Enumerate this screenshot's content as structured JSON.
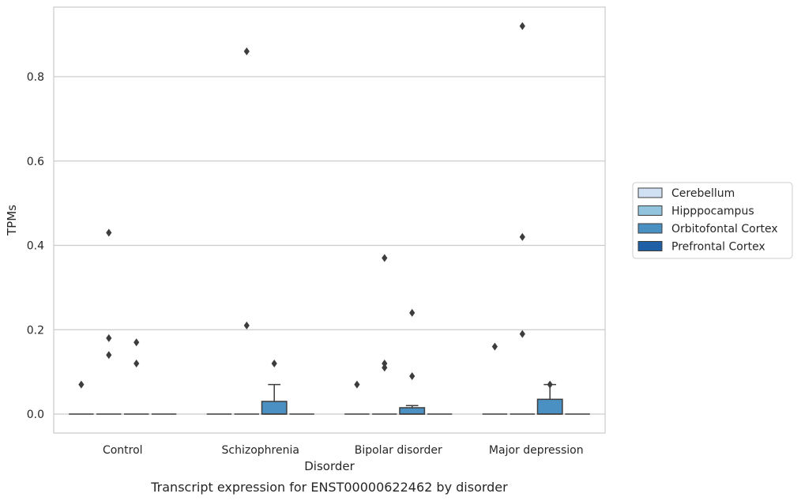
{
  "chart_data": {
    "type": "box",
    "title": "",
    "caption": "Transcript expression for ENST00000622462 by disorder",
    "xlabel": "Disorder",
    "ylabel": "TPMs",
    "ylim": [
      -0.045,
      0.965
    ],
    "yticks": [
      0.0,
      0.2,
      0.4,
      0.6,
      0.8
    ],
    "ytick_labels": [
      "0.0",
      "0.2",
      "0.4",
      "0.6",
      "0.8"
    ],
    "grid": "horizontal",
    "legend_position": "right",
    "categories": [
      "Control",
      "Schizophrenia",
      "Bipolar disorder",
      "Major depression"
    ],
    "series": [
      {
        "name": "Cerebellum",
        "color": "#cfe1f2",
        "boxes": [
          {
            "q1": 0,
            "median": 0,
            "q3": 0,
            "whisker_low": 0,
            "whisker_high": 0,
            "outliers": [
              0.07
            ]
          },
          {
            "q1": 0,
            "median": 0,
            "q3": 0,
            "whisker_low": 0,
            "whisker_high": 0,
            "outliers": []
          },
          {
            "q1": 0,
            "median": 0,
            "q3": 0,
            "whisker_low": 0,
            "whisker_high": 0,
            "outliers": [
              0.07
            ]
          },
          {
            "q1": 0,
            "median": 0,
            "q3": 0,
            "whisker_low": 0,
            "whisker_high": 0,
            "outliers": [
              0.16
            ]
          }
        ]
      },
      {
        "name": "Hipppocampus",
        "color": "#93c4de",
        "boxes": [
          {
            "q1": 0,
            "median": 0,
            "q3": 0,
            "whisker_low": 0,
            "whisker_high": 0,
            "outliers": [
              0.43,
              0.18,
              0.14
            ]
          },
          {
            "q1": 0,
            "median": 0,
            "q3": 0,
            "whisker_low": 0,
            "whisker_high": 0,
            "outliers": [
              0.86,
              0.21
            ]
          },
          {
            "q1": 0,
            "median": 0,
            "q3": 0,
            "whisker_low": 0,
            "whisker_high": 0,
            "outliers": [
              0.37,
              0.12,
              0.11
            ]
          },
          {
            "q1": 0,
            "median": 0,
            "q3": 0,
            "whisker_low": 0,
            "whisker_high": 0,
            "outliers": [
              0.92,
              0.42,
              0.19
            ]
          }
        ]
      },
      {
        "name": "Orbitofontal Cortex",
        "color": "#4a90c2",
        "boxes": [
          {
            "q1": 0,
            "median": 0,
            "q3": 0,
            "whisker_low": 0,
            "whisker_high": 0,
            "outliers": [
              0.17,
              0.12
            ]
          },
          {
            "q1": 0,
            "median": 0,
            "q3": 0.03,
            "whisker_low": 0,
            "whisker_high": 0.07,
            "outliers": [
              0.12
            ]
          },
          {
            "q1": 0,
            "median": 0,
            "q3": 0.015,
            "whisker_low": 0,
            "whisker_high": 0.02,
            "outliers": [
              0.24,
              0.09
            ]
          },
          {
            "q1": 0,
            "median": 0,
            "q3": 0.035,
            "whisker_low": 0,
            "whisker_high": 0.07,
            "outliers": [
              0.07
            ]
          }
        ]
      },
      {
        "name": "Prefrontal Cortex",
        "color": "#1f5fa5",
        "boxes": [
          {
            "q1": 0,
            "median": 0,
            "q3": 0,
            "whisker_low": 0,
            "whisker_high": 0,
            "outliers": []
          },
          {
            "q1": 0,
            "median": 0,
            "q3": 0,
            "whisker_low": 0,
            "whisker_high": 0,
            "outliers": []
          },
          {
            "q1": 0,
            "median": 0,
            "q3": 0,
            "whisker_low": 0,
            "whisker_high": 0,
            "outliers": []
          },
          {
            "q1": 0,
            "median": 0,
            "q3": 0,
            "whisker_low": 0,
            "whisker_high": 0,
            "outliers": []
          }
        ]
      }
    ]
  }
}
